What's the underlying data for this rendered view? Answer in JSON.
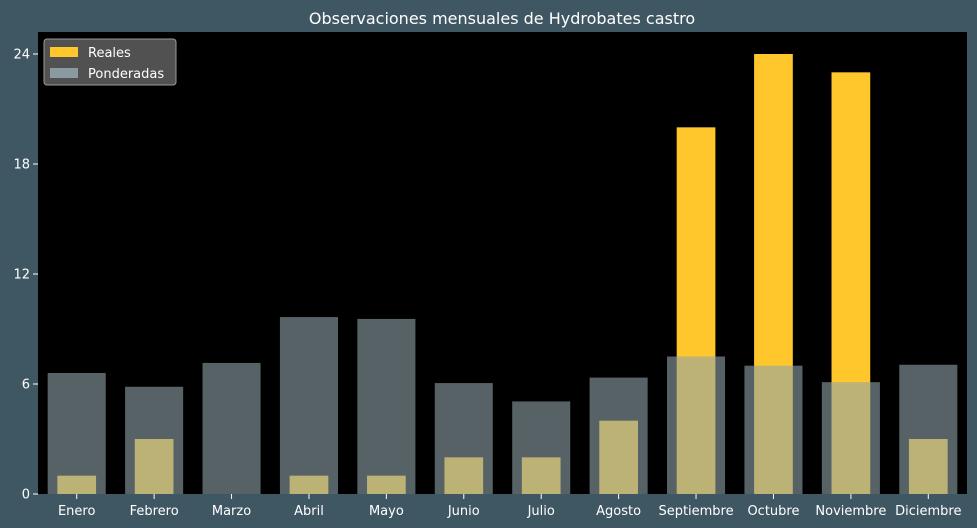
{
  "chart_data": {
    "type": "bar",
    "title": "Observaciones mensuales de Hydrobates castro",
    "xlabel": "",
    "ylabel": "",
    "categories": [
      "Enero",
      "Febrero",
      "Marzo",
      "Abril",
      "Mayo",
      "Junio",
      "Julio",
      "Agosto",
      "Septiembre",
      "Octubre",
      "Noviembre",
      "Diciembre"
    ],
    "series": [
      {
        "name": "Reales",
        "values": [
          1,
          3,
          0,
          1,
          1,
          2,
          2,
          4,
          20,
          24,
          23,
          3
        ],
        "color": "#ffc72c"
      },
      {
        "name": "Ponderadas",
        "values": [
          6.6,
          5.85,
          7.15,
          9.65,
          9.55,
          6.05,
          5.05,
          6.35,
          7.5,
          7.0,
          6.1,
          7.05
        ],
        "color": "#8fa3a8"
      }
    ],
    "ylim": [
      0,
      25.2
    ],
    "yticks": [
      0,
      6,
      12,
      18,
      24
    ],
    "grid": false,
    "legend_position": "top-left",
    "background": "#3f5663",
    "plot_background": "#000000"
  }
}
